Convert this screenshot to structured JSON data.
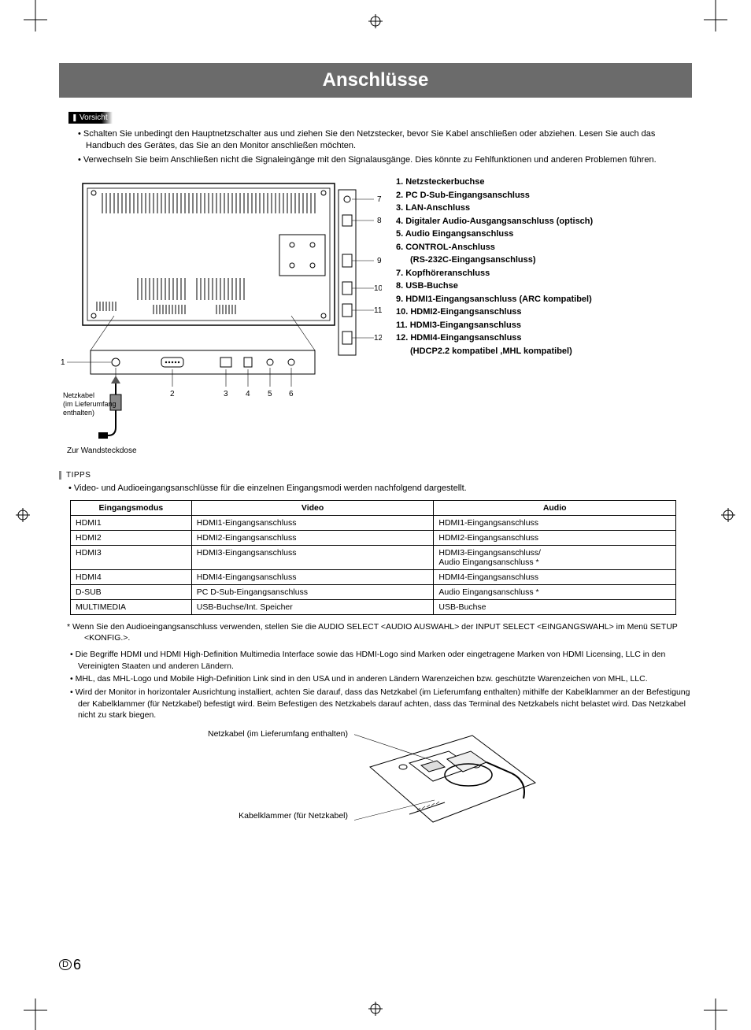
{
  "page": {
    "title": "Anschlüsse",
    "number": "6",
    "lang_code": "D"
  },
  "caution": {
    "label": "Vorsicht",
    "items": [
      "Schalten Sie unbedingt den Hauptnetzschalter aus und ziehen Sie den Netzstecker, bevor Sie Kabel anschließen oder abziehen. Lesen Sie auch das Handbuch des Gerätes, das Sie an den Monitor anschließen möchten.",
      "Verwechseln Sie beim Anschließen nicht die Signaleingänge mit den Signalausgänge. Dies könnte zu Fehlfunktionen und anderen Problemen führen."
    ]
  },
  "diagram": {
    "cable_label_line1": "Netzkabel",
    "cable_label_line2": "(im Lieferumfang",
    "cable_label_line3": "enthalten)",
    "outlet_label": "Zur Wandsteckdose",
    "callouts_bottom": [
      "1",
      "2",
      "3",
      "4",
      "5",
      "6"
    ],
    "callouts_right": [
      "7",
      "8",
      "9",
      "10",
      "11",
      "12"
    ]
  },
  "ports": [
    "1.  Netzsteckerbuchse",
    "2.  PC D-Sub-Eingangsanschluss",
    "3.  LAN-Anschluss",
    "4.  Digitaler Audio-Ausgangsanschluss (optisch)",
    "5.  Audio Eingangsanschluss",
    "6.  CONTROL-Anschluss",
    "     (RS-232C-Eingangsanschluss)",
    "7.  Kopfhöreranschluss",
    "8.  USB-Buchse",
    "9.  HDMI1-Eingangsanschluss (ARC kompatibel)",
    "10. HDMI2-Eingangsanschluss",
    "11. HDMI3-Eingangsanschluss",
    "12. HDMI4-Eingangsanschluss",
    "      (HDCP2.2 kompatibel ,MHL kompatibel)"
  ],
  "tips": {
    "label": "TIPPS",
    "intro": "Video- und Audioeingangsanschlüsse für die einzelnen Eingangsmodi werden nachfolgend dargestellt."
  },
  "table": {
    "headers": [
      "Eingangsmodus",
      "Video",
      "Audio"
    ],
    "rows": [
      [
        "HDMI1",
        "HDMI1-Eingangsanschluss",
        "HDMI1-Eingangsanschluss"
      ],
      [
        "HDMI2",
        "HDMI2-Eingangsanschluss",
        "HDMI2-Eingangsanschluss"
      ],
      [
        "HDMI3",
        "HDMI3-Eingangsanschluss",
        "HDMI3-Eingangsanschluss/\nAudio Eingangsanschluss *"
      ],
      [
        "HDMI4",
        "HDMI4-Eingangsanschluss",
        "HDMI4-Eingangsanschluss"
      ],
      [
        "D-SUB",
        "PC D-Sub-Eingangsanschluss",
        "Audio Eingangsanschluss *"
      ],
      [
        "MULTIMEDIA",
        "USB-Buchse/Int. Speicher",
        "USB-Buchse"
      ]
    ]
  },
  "footnote": "Wenn Sie den Audioeingangsanschluss verwenden, stellen Sie die AUDIO SELECT <AUDIO AUSWAHL> der INPUT SELECT <EINGANGSWAHL> im Menü SETUP <KONFIG.>.",
  "notes": [
    "Die Begriffe HDMI und HDMI High-Definition Multimedia Interface sowie das HDMI-Logo sind Marken oder eingetragene Marken von HDMI Licensing, LLC in den Vereinigten Staaten und anderen Ländern.",
    "MHL, das MHL-Logo und Mobile High-Definition Link sind in den USA und in anderen Ländern Warenzeichen bzw. geschützte Warenzeichen von MHL, LLC.",
    "Wird der Monitor in horizontaler Ausrichtung installiert, achten Sie darauf, dass das Netzkabel (im Lieferumfang enthalten) mithilfe der Kabelklammer an der Befestigung der Kabelklammer (für Netzkabel) befestigt wird. Beim Befestigen des Netzkabels darauf achten, dass das Terminal des Netzkabels nicht belastet wird. Das Netzkabel nicht zu stark biegen."
  ],
  "clamp": {
    "label1": "Netzkabel (im Lieferumfang enthalten)",
    "label2": "Kabelklammer (für Netzkabel)"
  },
  "colors": {
    "title_bg": "#6b6b6b",
    "title_fg": "#ffffff",
    "text": "#000000",
    "border": "#000000"
  }
}
